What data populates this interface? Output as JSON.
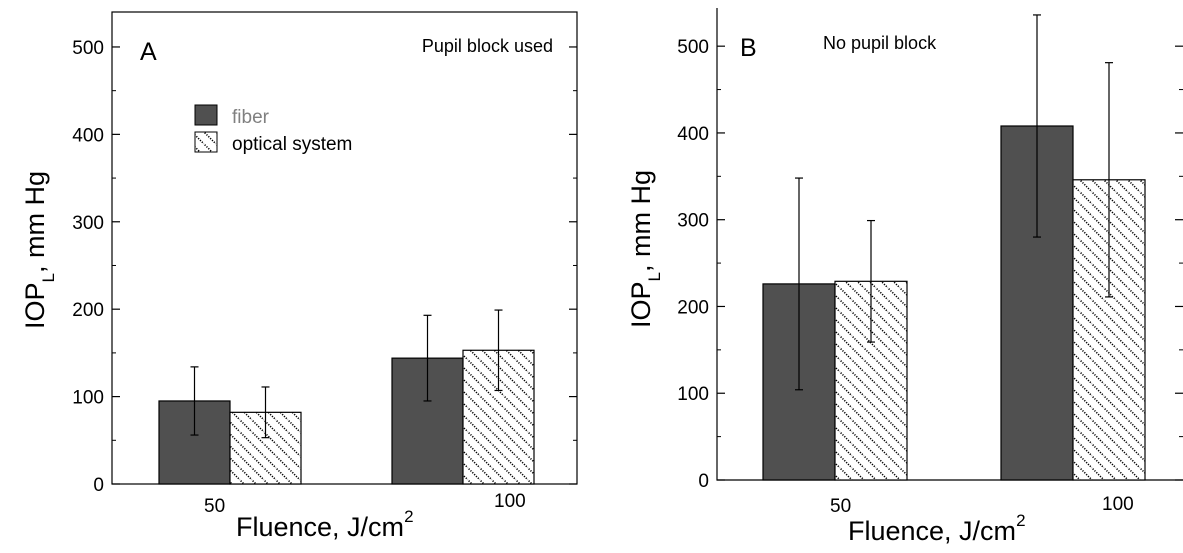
{
  "chart_data": [
    {
      "type": "bar",
      "panel_label": "A",
      "note": "Pupil block used",
      "categories": [
        "50",
        "100"
      ],
      "series": [
        {
          "name": "fiber",
          "values": [
            95,
            144
          ],
          "errors": [
            39,
            49
          ]
        },
        {
          "name": "optical system",
          "values": [
            82,
            153
          ],
          "errors": [
            29,
            46
          ]
        }
      ],
      "ylabel_main": "IOP",
      "ylabel_sub": "L",
      "ylabel_rest": ", mm Hg",
      "xlabel_main": "Fluence, J/cm",
      "xlabel_sup": "2",
      "yticks": [
        0,
        100,
        200,
        300,
        400,
        500
      ],
      "ylim": [
        0,
        540
      ],
      "legend": "upper-left"
    },
    {
      "type": "bar",
      "panel_label": "B",
      "note": "No pupil block",
      "categories": [
        "50",
        "100"
      ],
      "series": [
        {
          "name": "fiber",
          "values": [
            226,
            408
          ],
          "errors": [
            122,
            128
          ]
        },
        {
          "name": "optical system",
          "values": [
            229,
            346
          ],
          "errors": [
            70,
            135
          ]
        }
      ],
      "ylabel_main": "IOP",
      "ylabel_sub": "L",
      "ylabel_rest": ", mm Hg",
      "xlabel_main": "Fluence, J/cm",
      "xlabel_sup": "2",
      "yticks": [
        0,
        100,
        200,
        300,
        400,
        500
      ],
      "ylim": [
        0,
        544
      ]
    }
  ],
  "colors": {
    "fiber": "#505050",
    "optical_system_fill": "#ffffff",
    "hatch": "#000000",
    "legend_fiber_text": "#808080"
  }
}
